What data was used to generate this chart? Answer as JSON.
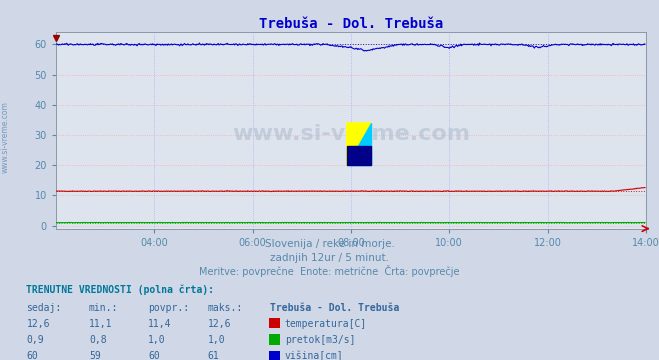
{
  "title": "Trebuša - Dol. Trebuša",
  "title_color": "#0000cc",
  "bg_color": "#d0d8e8",
  "plot_bg_color": "#dde4ee",
  "grid_color_h": "#ff9999",
  "grid_color_v": "#9999ff",
  "watermark": "www.si-vreme.com",
  "subtitle1": "Slovenija / reke in morje.",
  "subtitle2": "zadnjih 12ur / 5 minut.",
  "subtitle3": "Meritve: povprečne  Enote: metrične  Črta: povprečje",
  "subtitle_color": "#5588aa",
  "xlabel_color": "#5588aa",
  "ylabel_color": "#5588aa",
  "xticks": [
    "04:00",
    "06:00",
    "08:00",
    "10:00",
    "12:00",
    "14:00"
  ],
  "yticks": [
    0,
    10,
    20,
    30,
    40,
    50,
    60
  ],
  "ylim": [
    -1,
    64
  ],
  "xlim_minutes": 720,
  "temp_avg": 11.4,
  "temp_color": "#cc0000",
  "pretok_avg": 1.0,
  "pretok_color": "#00aa00",
  "visina_avg": 60.0,
  "visina_color": "#0000cc",
  "legend_title": "Trebuša - Dol. Trebuša",
  "legend_items": [
    {
      "label": "temperatura[C]",
      "color": "#cc0000"
    },
    {
      "label": "pretok[m3/s]",
      "color": "#00aa00"
    },
    {
      "label": "višina[cm]",
      "color": "#0000cc"
    }
  ],
  "table_header": [
    "sedaj:",
    "min.:",
    "povpr.:",
    "maks.:"
  ],
  "table_rows": [
    [
      "12,6",
      "11,1",
      "11,4",
      "12,6"
    ],
    [
      "0,9",
      "0,8",
      "1,0",
      "1,0"
    ],
    [
      "60",
      "59",
      "60",
      "61"
    ]
  ],
  "trenutne_text": "TRENUTNE VREDNOSTI (polna črta):",
  "watermark_color": "#aabbcc",
  "left_label": "www.si-vreme.com",
  "left_label_color": "#7799bb"
}
